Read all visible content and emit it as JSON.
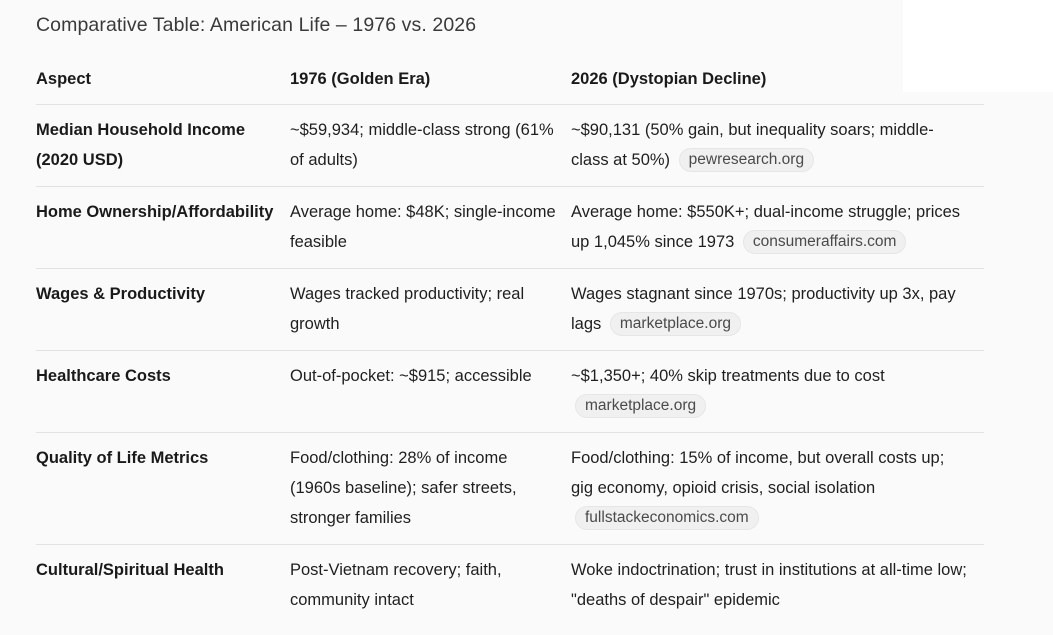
{
  "title": "Comparative Table: American Life – 1976 vs. 2026",
  "columns": [
    "Aspect",
    "1976 (Golden Era)",
    "2026 (Dystopian Decline)"
  ],
  "rows": [
    {
      "aspect": "Median Household Income (2020 USD)",
      "era1976": "~$59,934; middle-class strong (61% of adults)",
      "era2026": "~$90,131 (50% gain, but inequality soars; middle-class at 50%)",
      "source": "pewresearch.org"
    },
    {
      "aspect": "Home Ownership/Affordability",
      "era1976": "Average home: $48K; single-income feasible",
      "era2026": "Average home: $550K+; dual-income struggle; prices up 1,045% since 1973",
      "source": "consumeraffairs.com"
    },
    {
      "aspect": "Wages & Productivity",
      "era1976": "Wages tracked productivity; real growth",
      "era2026": "Wages stagnant since 1970s; productivity up 3x, pay lags",
      "source": "marketplace.org"
    },
    {
      "aspect": "Healthcare Costs",
      "era1976": "Out-of-pocket: ~$915; accessible",
      "era2026": "~$1,350+; 40% skip treatments due to cost",
      "source": "marketplace.org"
    },
    {
      "aspect": "Quality of Life Metrics",
      "era1976": "Food/clothing: 28% of income (1960s baseline); safer streets, stronger families",
      "era2026": "Food/clothing: 15% of income, but overall costs up; gig economy, opioid crisis, social isolation",
      "source": "fullstackeconomics.com"
    },
    {
      "aspect": "Cultural/Spiritual Health",
      "era1976": "Post-Vietnam recovery; faith, community intact",
      "era2026": "Woke indoctrination; trust in institutions at all-time low; \"deaths of despair\" epidemic",
      "source": ""
    }
  ]
}
